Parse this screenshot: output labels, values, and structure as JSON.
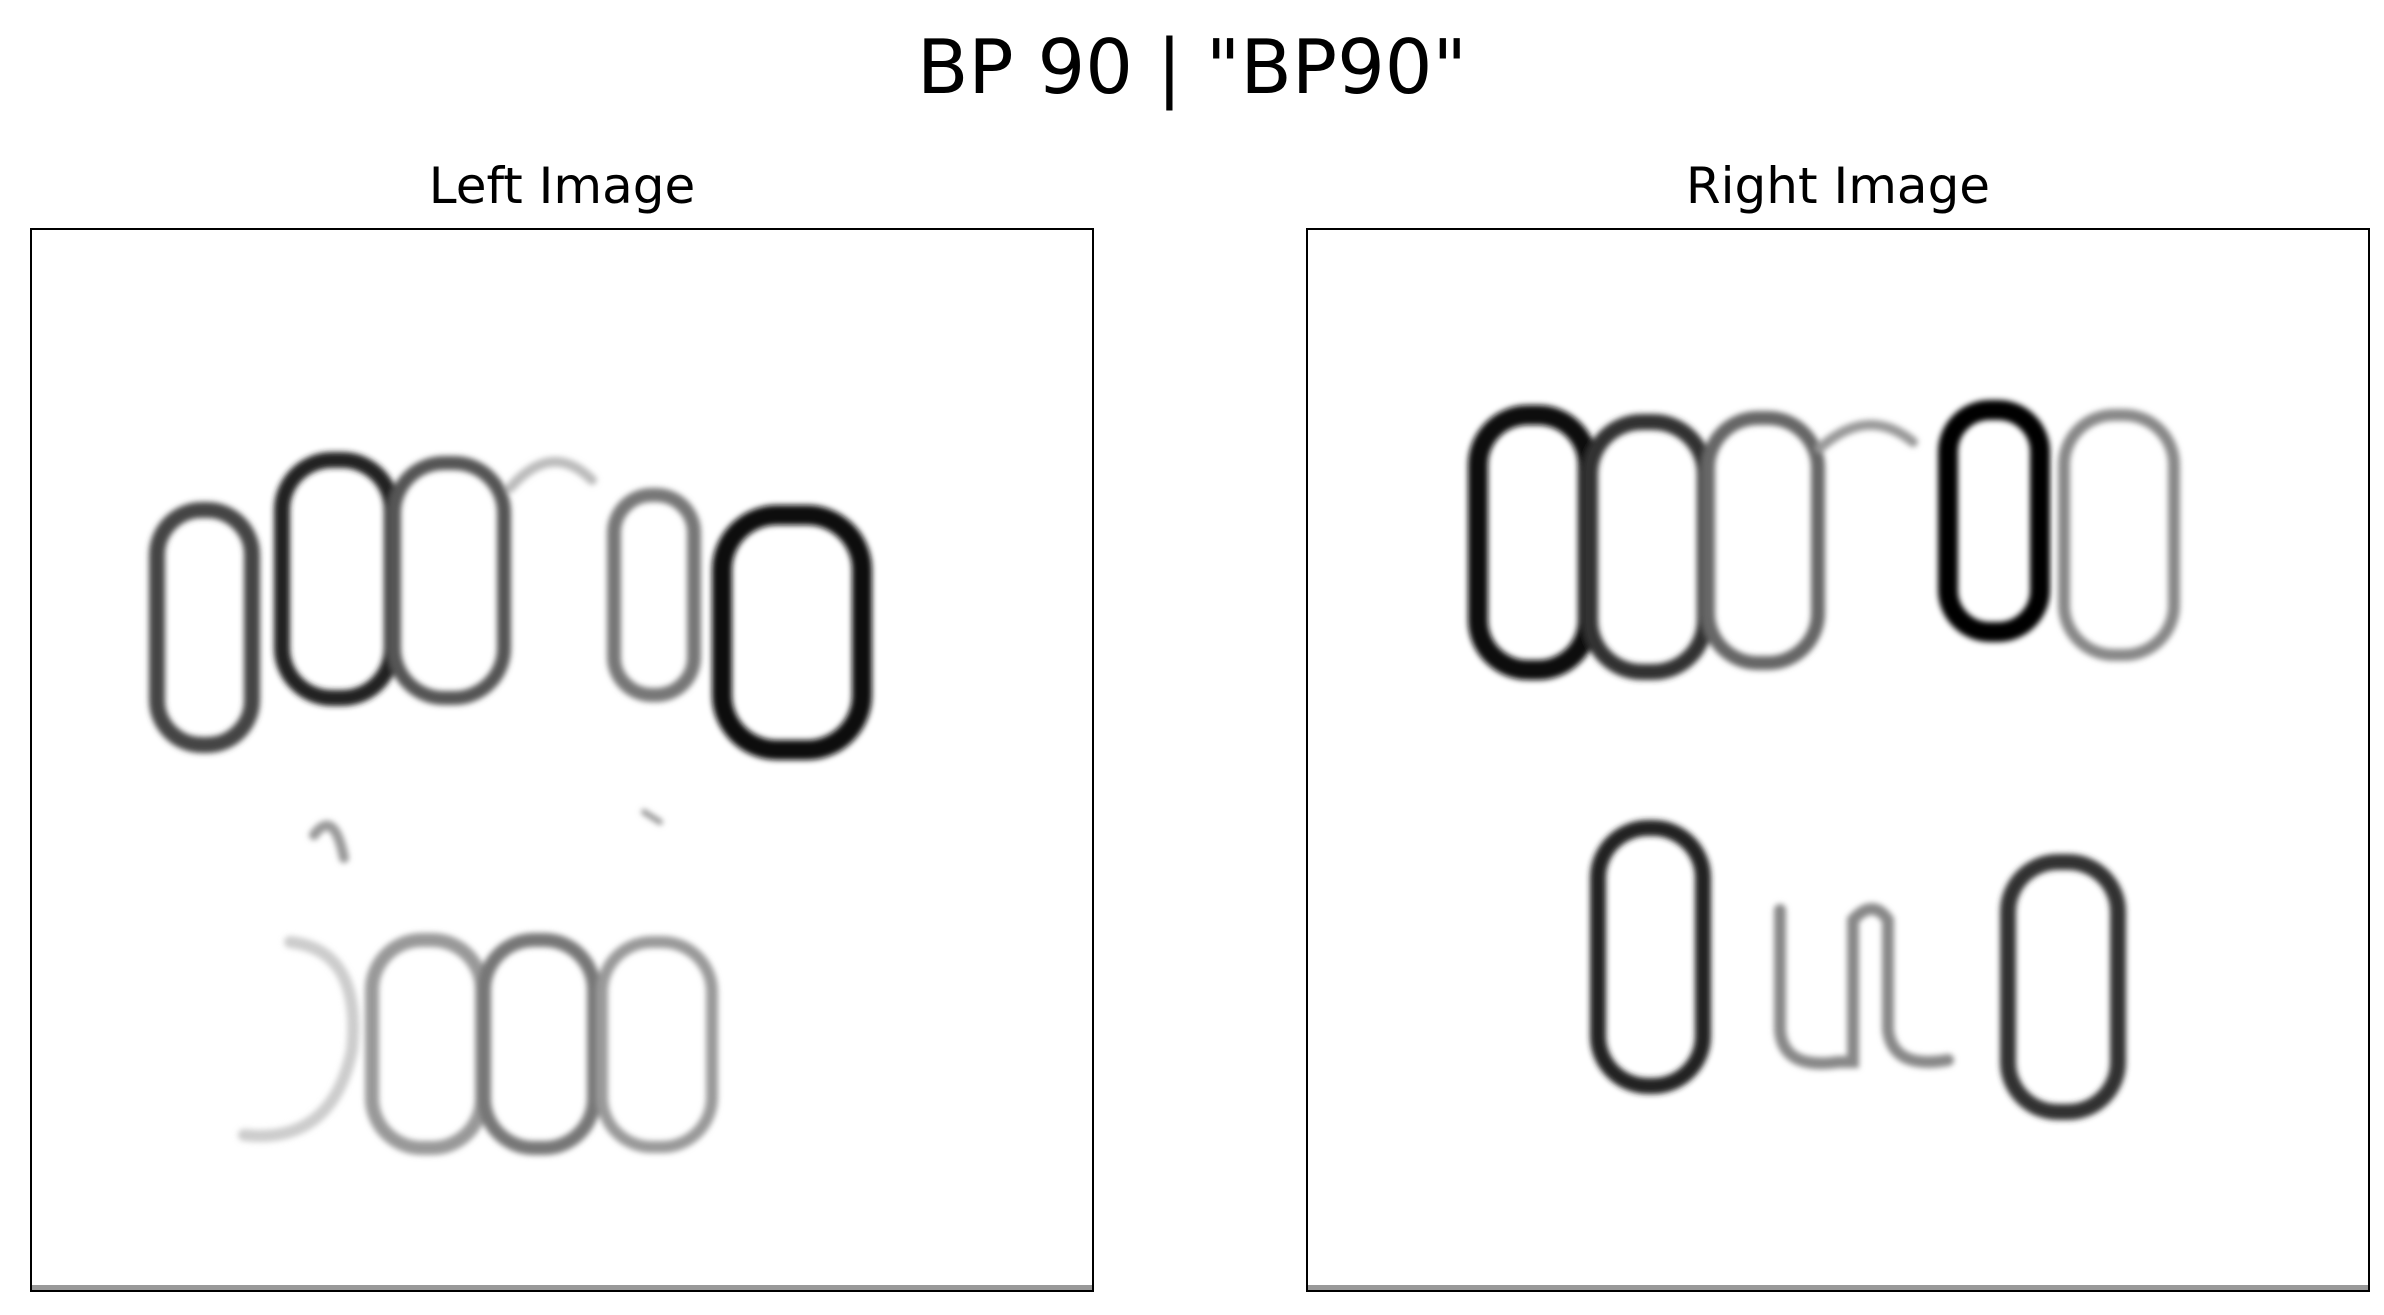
{
  "figure": {
    "title": "BP 90 | \"BP90\""
  },
  "panels": {
    "left": {
      "title": "Left Image"
    },
    "right": {
      "title": "Right Image"
    }
  }
}
